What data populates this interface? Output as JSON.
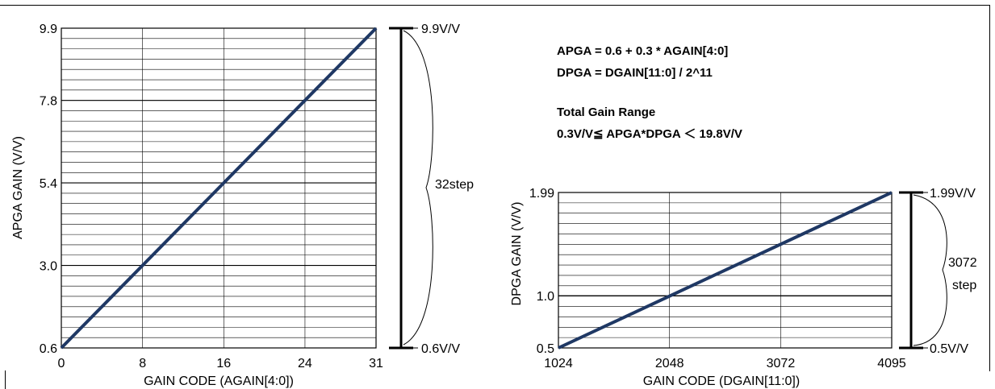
{
  "formulas": {
    "line1": "APGA = 0.6 + 0.3 * AGAIN[4:0]",
    "line2": "DPGA = DGAIN[11:0] / 2^11",
    "line3": "Total Gain Range",
    "line4": "0.3V/V≦ APGA*DPGA ＜ 19.8V/V"
  },
  "chart_data": [
    {
      "type": "line",
      "xlabel": "GAIN CODE (AGAIN[4:0])",
      "ylabel": "APGA GAIN (V/V)",
      "xlim": [
        0,
        31
      ],
      "ylim": [
        0.6,
        9.9
      ],
      "x_ticks": [
        "0",
        "8",
        "16",
        "24",
        "31"
      ],
      "y_ticks": [
        "0.6",
        "3.0",
        "5.4",
        "7.8",
        "9.9"
      ],
      "x_tick_values": [
        0,
        8,
        16,
        24,
        31
      ],
      "y_tick_values": [
        0.6,
        3.0,
        5.4,
        7.8,
        9.9
      ],
      "series": [
        {
          "x": [
            0,
            31
          ],
          "y": [
            0.6,
            9.9
          ]
        }
      ],
      "grid": true,
      "range_top_label": "9.9V/V",
      "range_bottom_label": "0.6V/V",
      "range_step_label": "32step",
      "line_color": "#1f3864"
    },
    {
      "type": "line",
      "xlabel": "GAIN CODE (DGAIN[11:0])",
      "ylabel": "DPGA GAIN (V/V)",
      "xlim": [
        1024,
        4095
      ],
      "ylim": [
        0.5,
        1.99
      ],
      "x_ticks": [
        "1024",
        "2048",
        "3072",
        "4095"
      ],
      "y_ticks": [
        "0.5",
        "1.0",
        "1.99"
      ],
      "x_tick_values": [
        1024,
        2048,
        3072,
        4095
      ],
      "y_tick_values": [
        0.5,
        1.0,
        1.99
      ],
      "series": [
        {
          "x": [
            1024,
            4095
          ],
          "y": [
            0.5,
            1.99
          ]
        }
      ],
      "grid": true,
      "range_top_label": "1.99V/V",
      "range_bottom_label": "0.5V/V",
      "range_step_label_line1": "3072",
      "range_step_label_line2": "step",
      "line_color": "#1f3864"
    }
  ]
}
